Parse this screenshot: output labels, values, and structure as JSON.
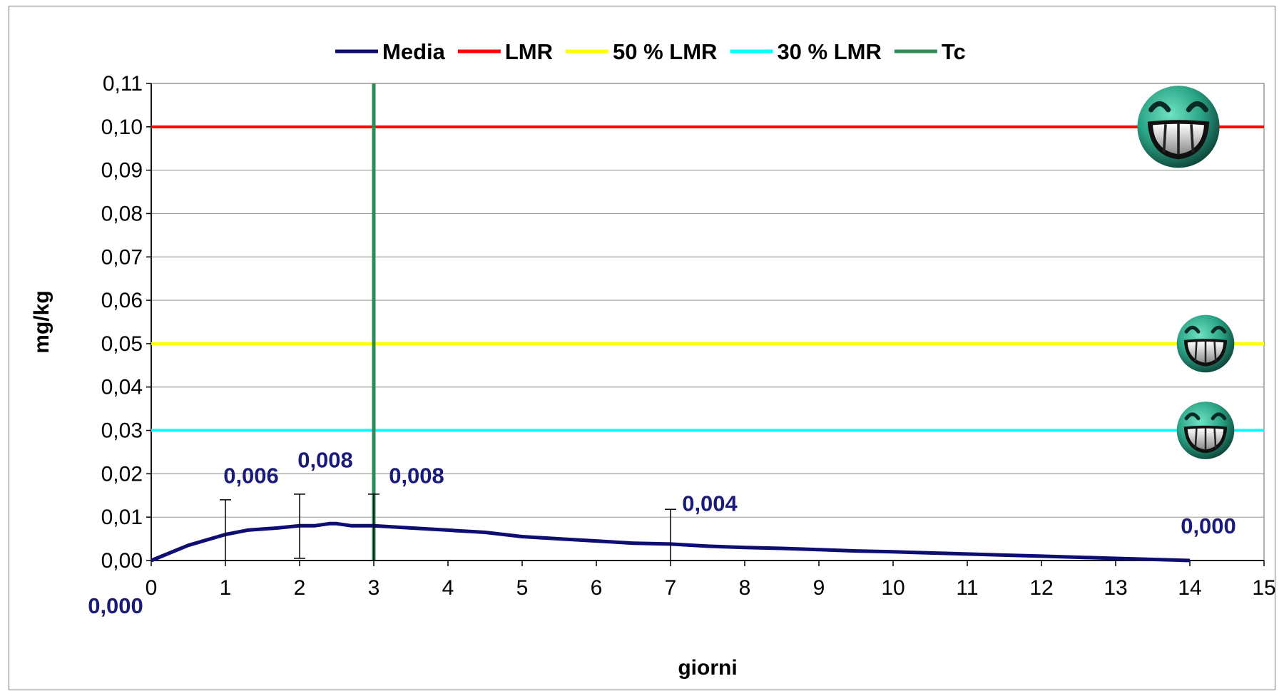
{
  "chart_data": {
    "type": "line",
    "xlabel": "giorni",
    "ylabel": "mg/kg",
    "xlim": [
      0,
      15
    ],
    "ylim": [
      0,
      0.11
    ],
    "x_ticks": [
      "0",
      "1",
      "2",
      "3",
      "4",
      "5",
      "6",
      "7",
      "8",
      "9",
      "10",
      "11",
      "12",
      "13",
      "14",
      "15"
    ],
    "y_ticks": [
      "0,00",
      "0,01",
      "0,02",
      "0,03",
      "0,04",
      "0,05",
      "0,06",
      "0,07",
      "0,08",
      "0,09",
      "0,10",
      "0,11"
    ],
    "grid": "horizontal",
    "legend_position": "top",
    "series": [
      {
        "name": "Media",
        "color": "#0d0d73",
        "x": [
          0,
          0.5,
          1,
          1.3,
          1.7,
          2,
          2.2,
          2.4,
          2.5,
          2.7,
          3,
          3.5,
          4,
          4.5,
          5,
          5.5,
          6,
          6.5,
          7,
          7.5,
          8,
          8.5,
          9,
          9.5,
          10,
          11,
          12,
          13,
          14
        ],
        "y": [
          0,
          0.0035,
          0.006,
          0.007,
          0.0075,
          0.008,
          0.008,
          0.0085,
          0.0085,
          0.008,
          0.008,
          0.0075,
          0.007,
          0.0065,
          0.0055,
          0.005,
          0.0045,
          0.004,
          0.0038,
          0.0033,
          0.003,
          0.0028,
          0.0025,
          0.0022,
          0.002,
          0.0015,
          0.001,
          0.0005,
          0
        ]
      },
      {
        "name": "LMR",
        "color": "#ff0000",
        "y_const": 0.1
      },
      {
        "name": "50 % LMR",
        "color": "#ffff00",
        "y_const": 0.05
      },
      {
        "name": "30 % LMR",
        "color": "#00ffff",
        "y_const": 0.03
      },
      {
        "name": "Tc",
        "color": "#2e8b57",
        "x_const": 3
      }
    ],
    "error_bars": [
      {
        "x": 1,
        "low": 0,
        "high": 0.014
      },
      {
        "x": 2,
        "low": 0.0005,
        "high": 0.0153
      },
      {
        "x": 3,
        "low": 0,
        "high": 0.0153
      },
      {
        "x": 7,
        "low": 0,
        "high": 0.0118
      }
    ],
    "data_labels": [
      {
        "text": "0,000",
        "x": 0,
        "y": 0
      },
      {
        "text": "0,006",
        "x": 1,
        "y": 0.006
      },
      {
        "text": "0,008",
        "x": 2,
        "y": 0.008
      },
      {
        "text": "0,008",
        "x": 3,
        "y": 0.008
      },
      {
        "text": "0,004",
        "x": 7,
        "y": 0.004
      },
      {
        "text": "0,000",
        "x": 14,
        "y": 0
      }
    ],
    "markers": [
      {
        "icon": "grinning-smiley-icon",
        "series": "LMR"
      },
      {
        "icon": "grinning-smiley-icon",
        "series": "50 % LMR"
      },
      {
        "icon": "grinning-smiley-icon",
        "series": "30 % LMR"
      }
    ]
  }
}
